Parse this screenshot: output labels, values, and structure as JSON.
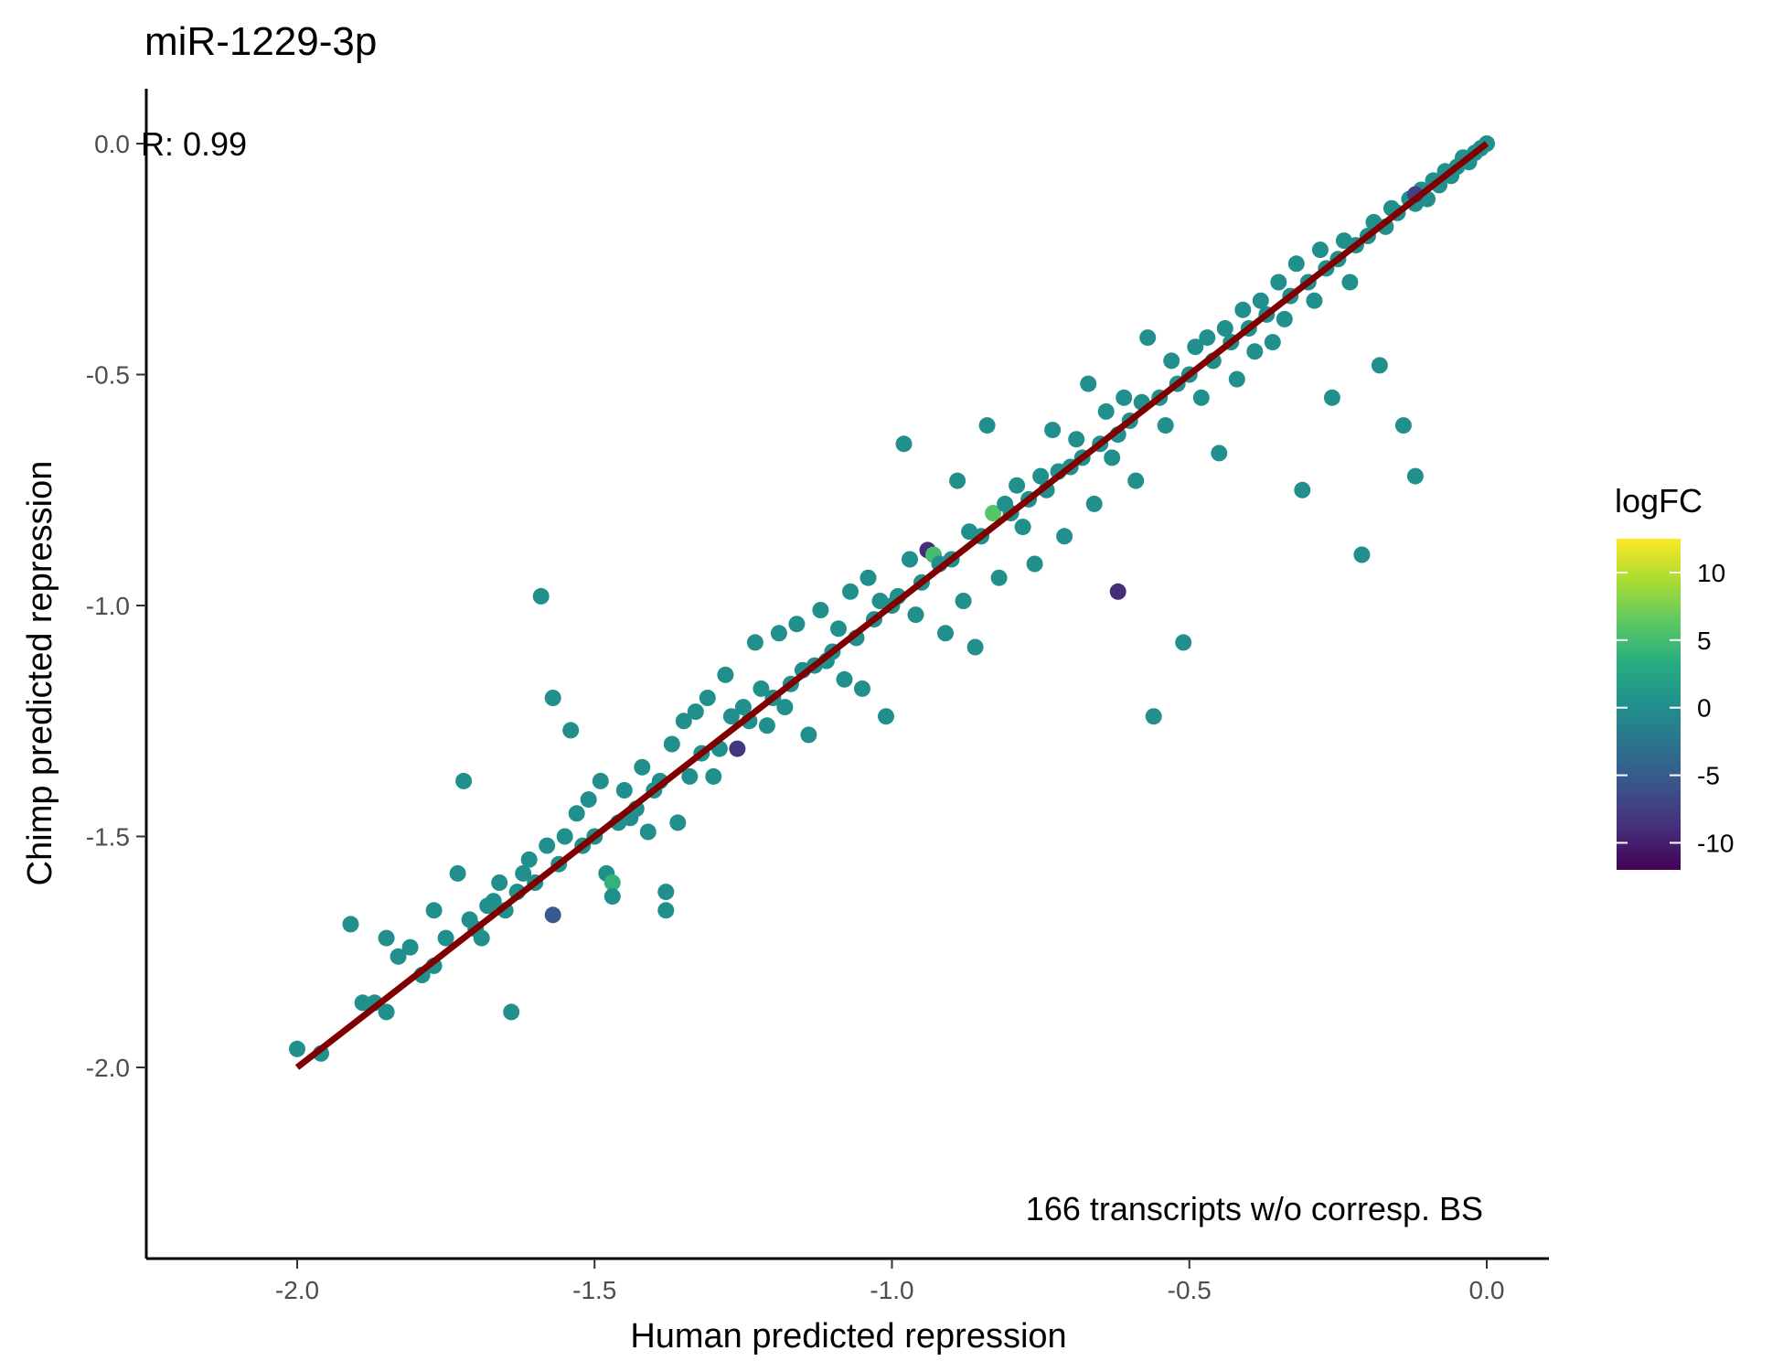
{
  "chart_data": {
    "type": "scatter",
    "title": "miR-1229-3p",
    "xlabel": "Human predicted repression",
    "ylabel": "Chimp predicted repression",
    "xlim": [
      -2.25,
      0.1
    ],
    "ylim": [
      -2.42,
      0.12
    ],
    "xticks": [
      -2.0,
      -1.5,
      -1.0,
      -0.5,
      0.0
    ],
    "xtick_labels": [
      "-2.0",
      "-1.5",
      "-1.0",
      "-0.5",
      "0.0"
    ],
    "yticks": [
      -2.0,
      -1.5,
      -1.0,
      -0.5,
      0.0
    ],
    "ytick_labels": [
      "-2.0",
      "-1.5",
      "-1.0",
      "-0.5",
      "0.0"
    ],
    "grid": false,
    "annotations": {
      "correlation": "R: 0.99",
      "note": "166 transcripts w/o corresp. BS"
    },
    "fit_line": {
      "color": "#7f0000",
      "x": [
        -2.0,
        0.0
      ],
      "y": [
        -2.0,
        0.0
      ]
    },
    "color_scale": {
      "title": "logFC",
      "palette": "viridis",
      "range": [
        -12,
        12.5
      ],
      "ticks": [
        10,
        5,
        0,
        -5,
        -10
      ],
      "tick_labels": [
        "10",
        "5",
        "0",
        "-5",
        "-10"
      ],
      "legend_position": "right"
    },
    "base_point_color": "#21908c",
    "points": [
      [
        -2.0,
        -1.96,
        0
      ],
      [
        -1.96,
        -1.97,
        0
      ],
      [
        -1.91,
        -1.69,
        0
      ],
      [
        -1.89,
        -1.86,
        0
      ],
      [
        -1.87,
        -1.86,
        0
      ],
      [
        -1.85,
        -1.88,
        0
      ],
      [
        -1.85,
        -1.72,
        0
      ],
      [
        -1.83,
        -1.76,
        0
      ],
      [
        -1.81,
        -1.74,
        0
      ],
      [
        -1.79,
        -1.8,
        0
      ],
      [
        -1.77,
        -1.66,
        0
      ],
      [
        -1.77,
        -1.78,
        0
      ],
      [
        -1.75,
        -1.72,
        0
      ],
      [
        -1.73,
        -1.58,
        0
      ],
      [
        -1.72,
        -1.38,
        0
      ],
      [
        -1.71,
        -1.68,
        0
      ],
      [
        -1.7,
        -1.7,
        0
      ],
      [
        -1.69,
        -1.72,
        0
      ],
      [
        -1.68,
        -1.65,
        0
      ],
      [
        -1.67,
        -1.64,
        0
      ],
      [
        -1.66,
        -1.6,
        0
      ],
      [
        -1.65,
        -1.66,
        0
      ],
      [
        -1.64,
        -1.88,
        0
      ],
      [
        -1.63,
        -1.62,
        0
      ],
      [
        -1.62,
        -1.58,
        0
      ],
      [
        -1.61,
        -1.55,
        0
      ],
      [
        -1.6,
        -1.6,
        0
      ],
      [
        -1.59,
        -0.98,
        0
      ],
      [
        -1.58,
        -1.52,
        0
      ],
      [
        -1.57,
        -1.67,
        -5
      ],
      [
        -1.57,
        -1.2,
        0
      ],
      [
        -1.56,
        -1.56,
        0
      ],
      [
        -1.55,
        -1.5,
        0
      ],
      [
        -1.54,
        -1.27,
        0
      ],
      [
        -1.53,
        -1.45,
        0
      ],
      [
        -1.52,
        -1.52,
        0
      ],
      [
        -1.51,
        -1.42,
        0
      ],
      [
        -1.5,
        -1.5,
        0
      ],
      [
        -1.49,
        -1.38,
        0
      ],
      [
        -1.48,
        -1.58,
        0
      ],
      [
        -1.47,
        -1.6,
        4
      ],
      [
        -1.47,
        -1.63,
        0
      ],
      [
        -1.46,
        -1.47,
        0
      ],
      [
        -1.45,
        -1.4,
        0
      ],
      [
        -1.44,
        -1.46,
        0
      ],
      [
        -1.43,
        -1.44,
        0
      ],
      [
        -1.42,
        -1.35,
        0
      ],
      [
        -1.41,
        -1.49,
        0
      ],
      [
        -1.4,
        -1.4,
        0
      ],
      [
        -1.39,
        -1.38,
        0
      ],
      [
        -1.38,
        -1.66,
        0
      ],
      [
        -1.38,
        -1.62,
        0
      ],
      [
        -1.37,
        -1.3,
        0
      ],
      [
        -1.36,
        -1.47,
        0
      ],
      [
        -1.35,
        -1.25,
        0
      ],
      [
        -1.34,
        -1.37,
        0
      ],
      [
        -1.33,
        -1.23,
        0
      ],
      [
        -1.32,
        -1.32,
        0
      ],
      [
        -1.31,
        -1.2,
        0
      ],
      [
        -1.3,
        -1.37,
        0
      ],
      [
        -1.29,
        -1.31,
        0
      ],
      [
        -1.28,
        -1.15,
        0
      ],
      [
        -1.27,
        -1.24,
        0
      ],
      [
        -1.26,
        -1.31,
        -8
      ],
      [
        -1.25,
        -1.22,
        0
      ],
      [
        -1.24,
        -1.25,
        0
      ],
      [
        -1.23,
        -1.08,
        0
      ],
      [
        -1.22,
        -1.18,
        0
      ],
      [
        -1.21,
        -1.26,
        0
      ],
      [
        -1.2,
        -1.2,
        0
      ],
      [
        -1.19,
        -1.06,
        0
      ],
      [
        -1.18,
        -1.22,
        0
      ],
      [
        -1.17,
        -1.17,
        0
      ],
      [
        -1.16,
        -1.04,
        0
      ],
      [
        -1.15,
        -1.14,
        0
      ],
      [
        -1.14,
        -1.28,
        0
      ],
      [
        -1.13,
        -1.13,
        0
      ],
      [
        -1.12,
        -1.01,
        0
      ],
      [
        -1.11,
        -1.12,
        0
      ],
      [
        -1.1,
        -1.1,
        0
      ],
      [
        -1.09,
        -1.05,
        0
      ],
      [
        -1.08,
        -1.16,
        0
      ],
      [
        -1.07,
        -0.97,
        0
      ],
      [
        -1.06,
        -1.07,
        0
      ],
      [
        -1.05,
        -1.18,
        0
      ],
      [
        -1.04,
        -0.94,
        0
      ],
      [
        -1.03,
        -1.03,
        0
      ],
      [
        -1.02,
        -0.99,
        0
      ],
      [
        -1.01,
        -1.24,
        0
      ],
      [
        -1.0,
        -1.0,
        0
      ],
      [
        -0.99,
        -0.98,
        0
      ],
      [
        -0.98,
        -0.65,
        0
      ],
      [
        -0.97,
        -0.9,
        0
      ],
      [
        -0.96,
        -1.02,
        0
      ],
      [
        -0.95,
        -0.95,
        0
      ],
      [
        -0.94,
        -0.88,
        -9
      ],
      [
        -0.93,
        -0.89,
        5
      ],
      [
        -0.92,
        -0.91,
        0
      ],
      [
        -0.91,
        -1.06,
        0
      ],
      [
        -0.9,
        -0.9,
        0
      ],
      [
        -0.89,
        -0.73,
        0
      ],
      [
        -0.88,
        -0.99,
        0
      ],
      [
        -0.87,
        -0.84,
        0
      ],
      [
        -0.86,
        -1.09,
        0
      ],
      [
        -0.85,
        -0.85,
        0
      ],
      [
        -0.84,
        -0.61,
        0
      ],
      [
        -0.83,
        -0.8,
        6
      ],
      [
        -0.82,
        -0.94,
        0
      ],
      [
        -0.81,
        -0.78,
        0
      ],
      [
        -0.8,
        -0.8,
        0
      ],
      [
        -0.79,
        -0.74,
        0
      ],
      [
        -0.78,
        -0.83,
        0
      ],
      [
        -0.77,
        -0.77,
        0
      ],
      [
        -0.76,
        -0.91,
        0
      ],
      [
        -0.75,
        -0.72,
        0
      ],
      [
        -0.74,
        -0.75,
        0
      ],
      [
        -0.73,
        -0.62,
        0
      ],
      [
        -0.72,
        -0.71,
        0
      ],
      [
        -0.71,
        -0.85,
        0
      ],
      [
        -0.7,
        -0.7,
        0
      ],
      [
        -0.69,
        -0.64,
        0
      ],
      [
        -0.68,
        -0.68,
        0
      ],
      [
        -0.67,
        -0.52,
        0
      ],
      [
        -0.66,
        -0.78,
        0
      ],
      [
        -0.65,
        -0.65,
        0
      ],
      [
        -0.64,
        -0.58,
        0
      ],
      [
        -0.63,
        -0.68,
        0
      ],
      [
        -0.62,
        -0.97,
        -9
      ],
      [
        -0.62,
        -0.63,
        0
      ],
      [
        -0.61,
        -0.55,
        0
      ],
      [
        -0.6,
        -0.6,
        0
      ],
      [
        -0.59,
        -0.73,
        0
      ],
      [
        -0.58,
        -0.56,
        0
      ],
      [
        -0.57,
        -0.42,
        0
      ],
      [
        -0.56,
        -1.24,
        0
      ],
      [
        -0.55,
        -0.55,
        0
      ],
      [
        -0.54,
        -0.61,
        0
      ],
      [
        -0.53,
        -0.47,
        0
      ],
      [
        -0.52,
        -0.52,
        0
      ],
      [
        -0.51,
        -1.08,
        0
      ],
      [
        -0.5,
        -0.5,
        0
      ],
      [
        -0.49,
        -0.44,
        0
      ],
      [
        -0.48,
        -0.55,
        0
      ],
      [
        -0.47,
        -0.42,
        0
      ],
      [
        -0.46,
        -0.47,
        0
      ],
      [
        -0.45,
        -0.67,
        0
      ],
      [
        -0.44,
        -0.4,
        0
      ],
      [
        -0.43,
        -0.43,
        0
      ],
      [
        -0.42,
        -0.51,
        0
      ],
      [
        -0.41,
        -0.36,
        0
      ],
      [
        -0.4,
        -0.4,
        0
      ],
      [
        -0.39,
        -0.45,
        0
      ],
      [
        -0.38,
        -0.34,
        0
      ],
      [
        -0.37,
        -0.37,
        0
      ],
      [
        -0.36,
        -0.43,
        0
      ],
      [
        -0.35,
        -0.3,
        0
      ],
      [
        -0.34,
        -0.38,
        0
      ],
      [
        -0.33,
        -0.33,
        0
      ],
      [
        -0.32,
        -0.26,
        0
      ],
      [
        -0.31,
        -0.75,
        0
      ],
      [
        -0.3,
        -0.3,
        0
      ],
      [
        -0.29,
        -0.34,
        0
      ],
      [
        -0.28,
        -0.23,
        0
      ],
      [
        -0.27,
        -0.27,
        0
      ],
      [
        -0.26,
        -0.55,
        0
      ],
      [
        -0.25,
        -0.25,
        0
      ],
      [
        -0.24,
        -0.21,
        0
      ],
      [
        -0.23,
        -0.3,
        0
      ],
      [
        -0.22,
        -0.22,
        0
      ],
      [
        -0.21,
        -0.89,
        0
      ],
      [
        -0.2,
        -0.2,
        0
      ],
      [
        -0.19,
        -0.17,
        0
      ],
      [
        -0.18,
        -0.48,
        0
      ],
      [
        -0.17,
        -0.18,
        0
      ],
      [
        -0.16,
        -0.14,
        0
      ],
      [
        -0.15,
        -0.15,
        0
      ],
      [
        -0.14,
        -0.61,
        0
      ],
      [
        -0.13,
        -0.12,
        0
      ],
      [
        -0.12,
        -0.72,
        0
      ],
      [
        -0.12,
        -0.13,
        0
      ],
      [
        -0.11,
        -0.1,
        0
      ],
      [
        -0.1,
        -0.12,
        0
      ],
      [
        -0.09,
        -0.08,
        0
      ],
      [
        -0.08,
        -0.09,
        0
      ],
      [
        -0.07,
        -0.06,
        0
      ],
      [
        -0.06,
        -0.07,
        0
      ],
      [
        -0.05,
        -0.05,
        0
      ],
      [
        -0.04,
        -0.03,
        0
      ],
      [
        -0.03,
        -0.04,
        0
      ],
      [
        -0.02,
        -0.02,
        0
      ],
      [
        -0.01,
        -0.01,
        0
      ],
      [
        0.0,
        0.0,
        0
      ],
      [
        -0.12,
        -0.11,
        -7
      ]
    ]
  }
}
